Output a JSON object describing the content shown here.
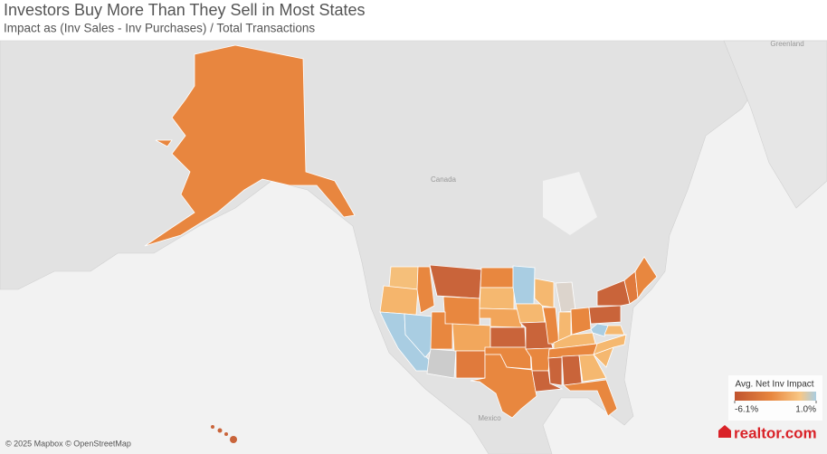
{
  "header": {
    "title": "Investors Buy More Than They Sell in Most States",
    "subtitle": "Impact as (Inv Sales - Inv Purchases) / Total Transactions"
  },
  "map": {
    "labels": [
      "Canada",
      "Mexico",
      "Greenland"
    ],
    "attribution": "© 2025 Mapbox © OpenStreetMap",
    "logo": "realtor.com"
  },
  "legend": {
    "title": "Avg. Net Inv Impact",
    "range": [
      {
        "value": -6.1,
        "label": "-6.1%"
      },
      {
        "value": 1.0,
        "label": "1.0%"
      }
    ]
  }
}
